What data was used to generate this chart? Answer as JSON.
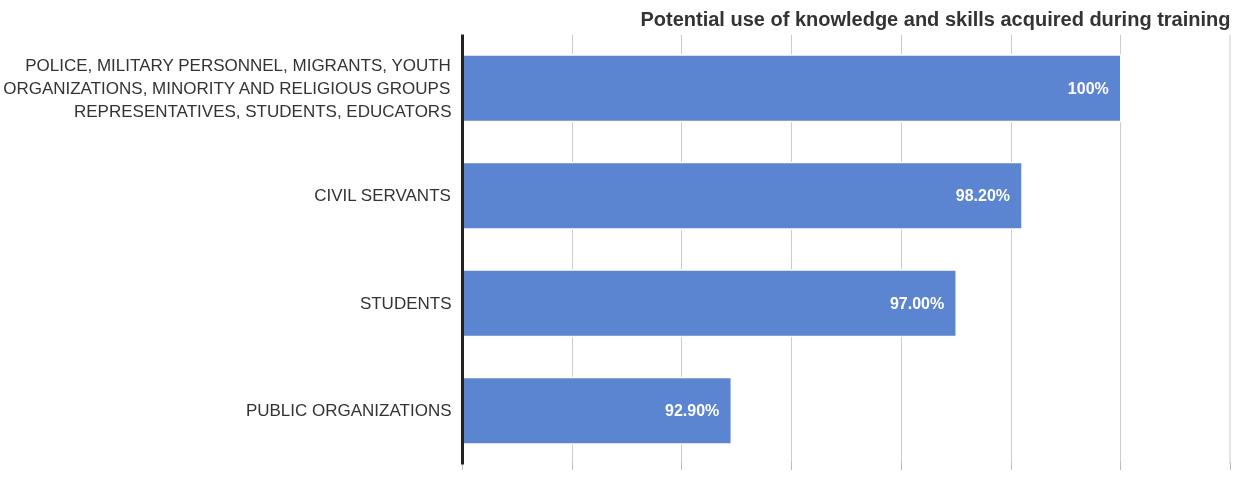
{
  "chart_data": {
    "type": "bar",
    "orientation": "horizontal",
    "title": "Potential use of knowledge and skills acquired during training",
    "categories": [
      "POLICE, MILITARY PERSONNEL, MIGRANTS, YOUTH ORGANIZATIONS, MINORITY AND RELIGIOUS GROUPS REPRESENTATIVES, STUDENTS, EDUCATORS",
      "CIVIL SERVANTS",
      "STUDENTS",
      "PUBLIC ORGANIZATIONS"
    ],
    "values": [
      100,
      98.2,
      97,
      92.9
    ],
    "value_labels": [
      "100%",
      "98.20%",
      "97.00%",
      "92.90%"
    ],
    "color": "#5b85d0",
    "xlim": [
      88,
      102
    ],
    "xticks": [
      {
        "value": 88,
        "label": null
      },
      {
        "value": 90,
        "label": null
      },
      {
        "value": 92,
        "label": null
      },
      {
        "value": 94,
        "label": null
      },
      {
        "value": 96,
        "label": null
      },
      {
        "value": 98,
        "label": null
      },
      {
        "value": 100,
        "label": null
      },
      {
        "value": 102,
        "label": null
      }
    ],
    "grid": "x",
    "tick_labels": "y"
  }
}
